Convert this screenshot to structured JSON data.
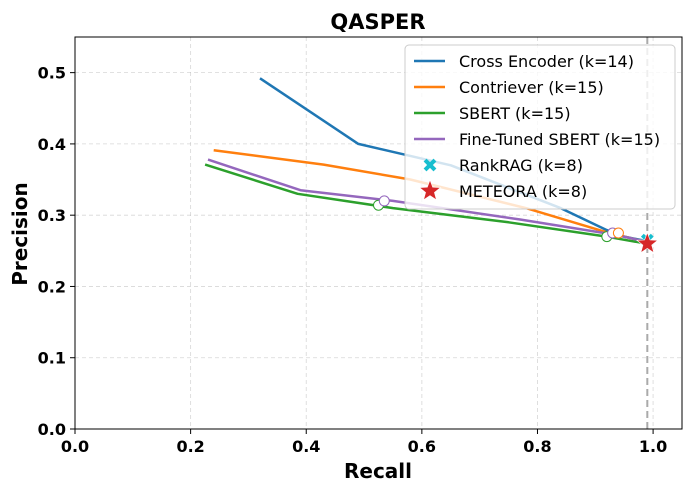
{
  "chart_data": {
    "type": "line",
    "title": "QASPER",
    "xlabel": "Recall",
    "ylabel": "Precision",
    "xlim": [
      0.0,
      1.05
    ],
    "ylim": [
      0.0,
      0.55
    ],
    "xticks": [
      "0.0",
      "0.2",
      "0.4",
      "0.6",
      "0.8",
      "1.0"
    ],
    "yticks": [
      "0.0",
      "0.1",
      "0.2",
      "0.3",
      "0.4",
      "0.5"
    ],
    "grid": true,
    "legend_position": "top-right",
    "reference_line": {
      "x": 0.99,
      "style": "dashed",
      "color": "#aaaaaa"
    },
    "series": [
      {
        "name": "Cross Encoder (k=14)",
        "color": "#1f77b4",
        "points": [
          [
            0.32,
            0.492
          ],
          [
            0.49,
            0.4
          ],
          [
            0.65,
            0.37
          ],
          [
            0.84,
            0.31
          ],
          [
            0.92,
            0.279
          ],
          [
            0.95,
            0.27
          ],
          [
            0.98,
            0.265
          ],
          [
            0.99,
            0.262
          ]
        ]
      },
      {
        "name": "Contriever (k=15)",
        "color": "#ff7f0e",
        "points": [
          [
            0.24,
            0.391
          ],
          [
            0.43,
            0.371
          ],
          [
            0.58,
            0.35
          ],
          [
            0.78,
            0.31
          ],
          [
            0.92,
            0.276
          ],
          [
            0.96,
            0.268
          ],
          [
            0.99,
            0.262
          ]
        ]
      },
      {
        "name": "SBERT (k=15)",
        "color": "#2ca02c",
        "points": [
          [
            0.225,
            0.371
          ],
          [
            0.385,
            0.33
          ],
          [
            0.55,
            0.31
          ],
          [
            0.75,
            0.29
          ],
          [
            0.92,
            0.27
          ],
          [
            0.96,
            0.264
          ],
          [
            0.99,
            0.26
          ]
        ]
      },
      {
        "name": "Fine-Tuned SBERT (k=15)",
        "color": "#9467bd",
        "points": [
          [
            0.23,
            0.378
          ],
          [
            0.39,
            0.335
          ],
          [
            0.55,
            0.32
          ],
          [
            0.77,
            0.294
          ],
          [
            0.93,
            0.273
          ],
          [
            0.96,
            0.268
          ],
          [
            0.99,
            0.262
          ]
        ]
      }
    ],
    "highlight_points": [
      {
        "series": "SBERT (k=15)",
        "x": 0.525,
        "y": 0.314,
        "color": "#2ca02c"
      },
      {
        "series": "Fine-Tuned SBERT (k=15)",
        "x": 0.535,
        "y": 0.32,
        "color": "#9467bd"
      },
      {
        "series": "SBERT (k=15)",
        "x": 0.92,
        "y": 0.27,
        "color": "#2ca02c"
      },
      {
        "series": "Fine-Tuned SBERT (k=15)",
        "x": 0.93,
        "y": 0.275,
        "color": "#9467bd"
      },
      {
        "series": "Contriever (k=15)",
        "x": 0.94,
        "y": 0.275,
        "color": "#ff7f0e"
      }
    ],
    "markers": [
      {
        "name": "RankRAG (k=8)",
        "x": 0.99,
        "y": 0.265,
        "color": "#17becf",
        "shape": "x"
      },
      {
        "name": "METEORA (k=8)",
        "x": 0.99,
        "y": 0.26,
        "color": "#d62728",
        "shape": "star"
      }
    ]
  }
}
